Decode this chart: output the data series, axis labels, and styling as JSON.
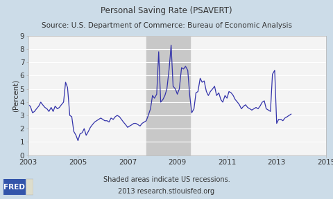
{
  "title": "Personal Saving Rate (PSAVERT)",
  "subtitle": "Source: U.S. Department of Commerce: Bureau of Economic Analysis",
  "ylabel": "(Percent)",
  "footer1": "Shaded areas indicate US recessions.",
  "footer2": "2013 research.stlouisfed.org",
  "xlim": [
    2003,
    2015
  ],
  "ylim": [
    0,
    9
  ],
  "xticks": [
    2003,
    2005,
    2007,
    2009,
    2011,
    2013,
    2015
  ],
  "yticks": [
    0,
    1,
    2,
    3,
    4,
    5,
    6,
    7,
    8,
    9
  ],
  "recession_start": 2007.75,
  "recession_end": 2009.5,
  "recession_color": "#c8c8c8",
  "line_color": "#3333aa",
  "bg_color": "#ccdce8",
  "plot_bg_color": "#f4f4f4",
  "grid_color": "#ffffff",
  "title_fontsize": 8.5,
  "subtitle_fontsize": 7.5,
  "axis_fontsize": 7.5,
  "ylabel_fontsize": 7.5,
  "footer_fontsize": 7.0,
  "time_series": [
    [
      2003.0,
      3.8
    ],
    [
      2003.08,
      3.7
    ],
    [
      2003.17,
      3.2
    ],
    [
      2003.25,
      3.3
    ],
    [
      2003.33,
      3.5
    ],
    [
      2003.42,
      3.7
    ],
    [
      2003.5,
      4.0
    ],
    [
      2003.58,
      3.8
    ],
    [
      2003.67,
      3.6
    ],
    [
      2003.75,
      3.5
    ],
    [
      2003.83,
      3.3
    ],
    [
      2003.92,
      3.6
    ],
    [
      2004.0,
      3.3
    ],
    [
      2004.08,
      3.7
    ],
    [
      2004.17,
      3.5
    ],
    [
      2004.25,
      3.6
    ],
    [
      2004.33,
      3.8
    ],
    [
      2004.42,
      4.0
    ],
    [
      2004.5,
      5.5
    ],
    [
      2004.58,
      5.1
    ],
    [
      2004.67,
      3.0
    ],
    [
      2004.75,
      2.9
    ],
    [
      2004.83,
      1.8
    ],
    [
      2004.92,
      1.5
    ],
    [
      2005.0,
      1.1
    ],
    [
      2005.08,
      1.6
    ],
    [
      2005.17,
      1.7
    ],
    [
      2005.25,
      2.0
    ],
    [
      2005.33,
      1.5
    ],
    [
      2005.42,
      1.8
    ],
    [
      2005.5,
      2.1
    ],
    [
      2005.58,
      2.3
    ],
    [
      2005.67,
      2.5
    ],
    [
      2005.75,
      2.6
    ],
    [
      2005.83,
      2.7
    ],
    [
      2005.92,
      2.8
    ],
    [
      2006.0,
      2.7
    ],
    [
      2006.08,
      2.6
    ],
    [
      2006.17,
      2.6
    ],
    [
      2006.25,
      2.5
    ],
    [
      2006.33,
      2.8
    ],
    [
      2006.42,
      2.7
    ],
    [
      2006.5,
      2.9
    ],
    [
      2006.58,
      3.0
    ],
    [
      2006.67,
      2.9
    ],
    [
      2006.75,
      2.7
    ],
    [
      2006.83,
      2.5
    ],
    [
      2006.92,
      2.3
    ],
    [
      2007.0,
      2.1
    ],
    [
      2007.08,
      2.2
    ],
    [
      2007.17,
      2.3
    ],
    [
      2007.25,
      2.4
    ],
    [
      2007.33,
      2.4
    ],
    [
      2007.42,
      2.3
    ],
    [
      2007.5,
      2.2
    ],
    [
      2007.58,
      2.4
    ],
    [
      2007.67,
      2.5
    ],
    [
      2007.75,
      2.6
    ],
    [
      2007.83,
      3.0
    ],
    [
      2007.92,
      3.5
    ],
    [
      2008.0,
      4.5
    ],
    [
      2008.08,
      4.3
    ],
    [
      2008.17,
      4.6
    ],
    [
      2008.25,
      7.8
    ],
    [
      2008.33,
      4.0
    ],
    [
      2008.42,
      4.2
    ],
    [
      2008.5,
      4.5
    ],
    [
      2008.58,
      5.0
    ],
    [
      2008.67,
      6.5
    ],
    [
      2008.75,
      8.3
    ],
    [
      2008.83,
      5.2
    ],
    [
      2008.92,
      5.0
    ],
    [
      2009.0,
      4.6
    ],
    [
      2009.08,
      5.0
    ],
    [
      2009.17,
      6.6
    ],
    [
      2009.25,
      6.5
    ],
    [
      2009.33,
      6.7
    ],
    [
      2009.42,
      6.4
    ],
    [
      2009.5,
      4.5
    ],
    [
      2009.58,
      3.2
    ],
    [
      2009.67,
      3.5
    ],
    [
      2009.75,
      4.7
    ],
    [
      2009.83,
      4.8
    ],
    [
      2009.92,
      5.8
    ],
    [
      2010.0,
      5.5
    ],
    [
      2010.08,
      5.6
    ],
    [
      2010.17,
      4.8
    ],
    [
      2010.25,
      4.5
    ],
    [
      2010.33,
      4.8
    ],
    [
      2010.42,
      5.0
    ],
    [
      2010.5,
      5.2
    ],
    [
      2010.58,
      4.5
    ],
    [
      2010.67,
      4.7
    ],
    [
      2010.75,
      4.2
    ],
    [
      2010.83,
      4.0
    ],
    [
      2010.92,
      4.5
    ],
    [
      2011.0,
      4.3
    ],
    [
      2011.08,
      4.8
    ],
    [
      2011.17,
      4.7
    ],
    [
      2011.25,
      4.5
    ],
    [
      2011.33,
      4.2
    ],
    [
      2011.42,
      4.0
    ],
    [
      2011.5,
      3.8
    ],
    [
      2011.58,
      3.5
    ],
    [
      2011.67,
      3.7
    ],
    [
      2011.75,
      3.8
    ],
    [
      2011.83,
      3.6
    ],
    [
      2011.92,
      3.5
    ],
    [
      2012.0,
      3.4
    ],
    [
      2012.08,
      3.5
    ],
    [
      2012.17,
      3.6
    ],
    [
      2012.25,
      3.5
    ],
    [
      2012.33,
      3.7
    ],
    [
      2012.42,
      4.0
    ],
    [
      2012.5,
      4.1
    ],
    [
      2012.58,
      3.5
    ],
    [
      2012.67,
      3.4
    ],
    [
      2012.75,
      3.3
    ],
    [
      2012.83,
      6.1
    ],
    [
      2012.92,
      6.4
    ],
    [
      2013.0,
      2.4
    ],
    [
      2013.08,
      2.7
    ],
    [
      2013.17,
      2.7
    ],
    [
      2013.25,
      2.6
    ],
    [
      2013.33,
      2.8
    ],
    [
      2013.42,
      2.9
    ],
    [
      2013.5,
      3.0
    ],
    [
      2013.58,
      3.1
    ]
  ]
}
